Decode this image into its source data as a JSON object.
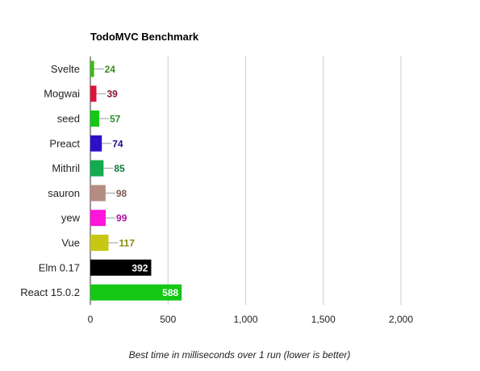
{
  "chart_data": {
    "type": "bar",
    "orientation": "horizontal",
    "title": "TodoMVC Benchmark",
    "xlabel": "Best time in milliseconds over 1 run (lower is better)",
    "ylabel": "",
    "xlim": [
      0,
      2400
    ],
    "xticks": [
      0,
      500,
      1000,
      1500,
      2000
    ],
    "xtick_labels": [
      "0",
      "500",
      "1,000",
      "1,500",
      "2,000"
    ],
    "grid": true,
    "categories": [
      "Svelte",
      "Mogwai",
      "seed",
      "Preact",
      "Mithril",
      "sauron",
      "yew",
      "Vue",
      "Elm 0.17",
      "React 15.0.2"
    ],
    "values": [
      24,
      39,
      57,
      74,
      85,
      98,
      99,
      117,
      392,
      588
    ],
    "value_labels": [
      "24",
      "39",
      "57",
      "74",
      "85",
      "98",
      "99",
      "117",
      "392",
      "588"
    ],
    "bar_colors": [
      "#3cba14",
      "#dc143c",
      "#14c814",
      "#2d0fc8",
      "#14aa50",
      "#b48c82",
      "#ff14dc",
      "#c8c814",
      "#000000",
      "#14c814"
    ],
    "label_colors": [
      "#3a8f20",
      "#8b1030",
      "#2a8f2a",
      "#200a90",
      "#107a3a",
      "#7a5a50",
      "#b010a0",
      "#8a8a10",
      "#ffffff",
      "#ffffff"
    ],
    "label_inside": [
      false,
      false,
      false,
      false,
      false,
      false,
      false,
      false,
      true,
      true
    ]
  }
}
